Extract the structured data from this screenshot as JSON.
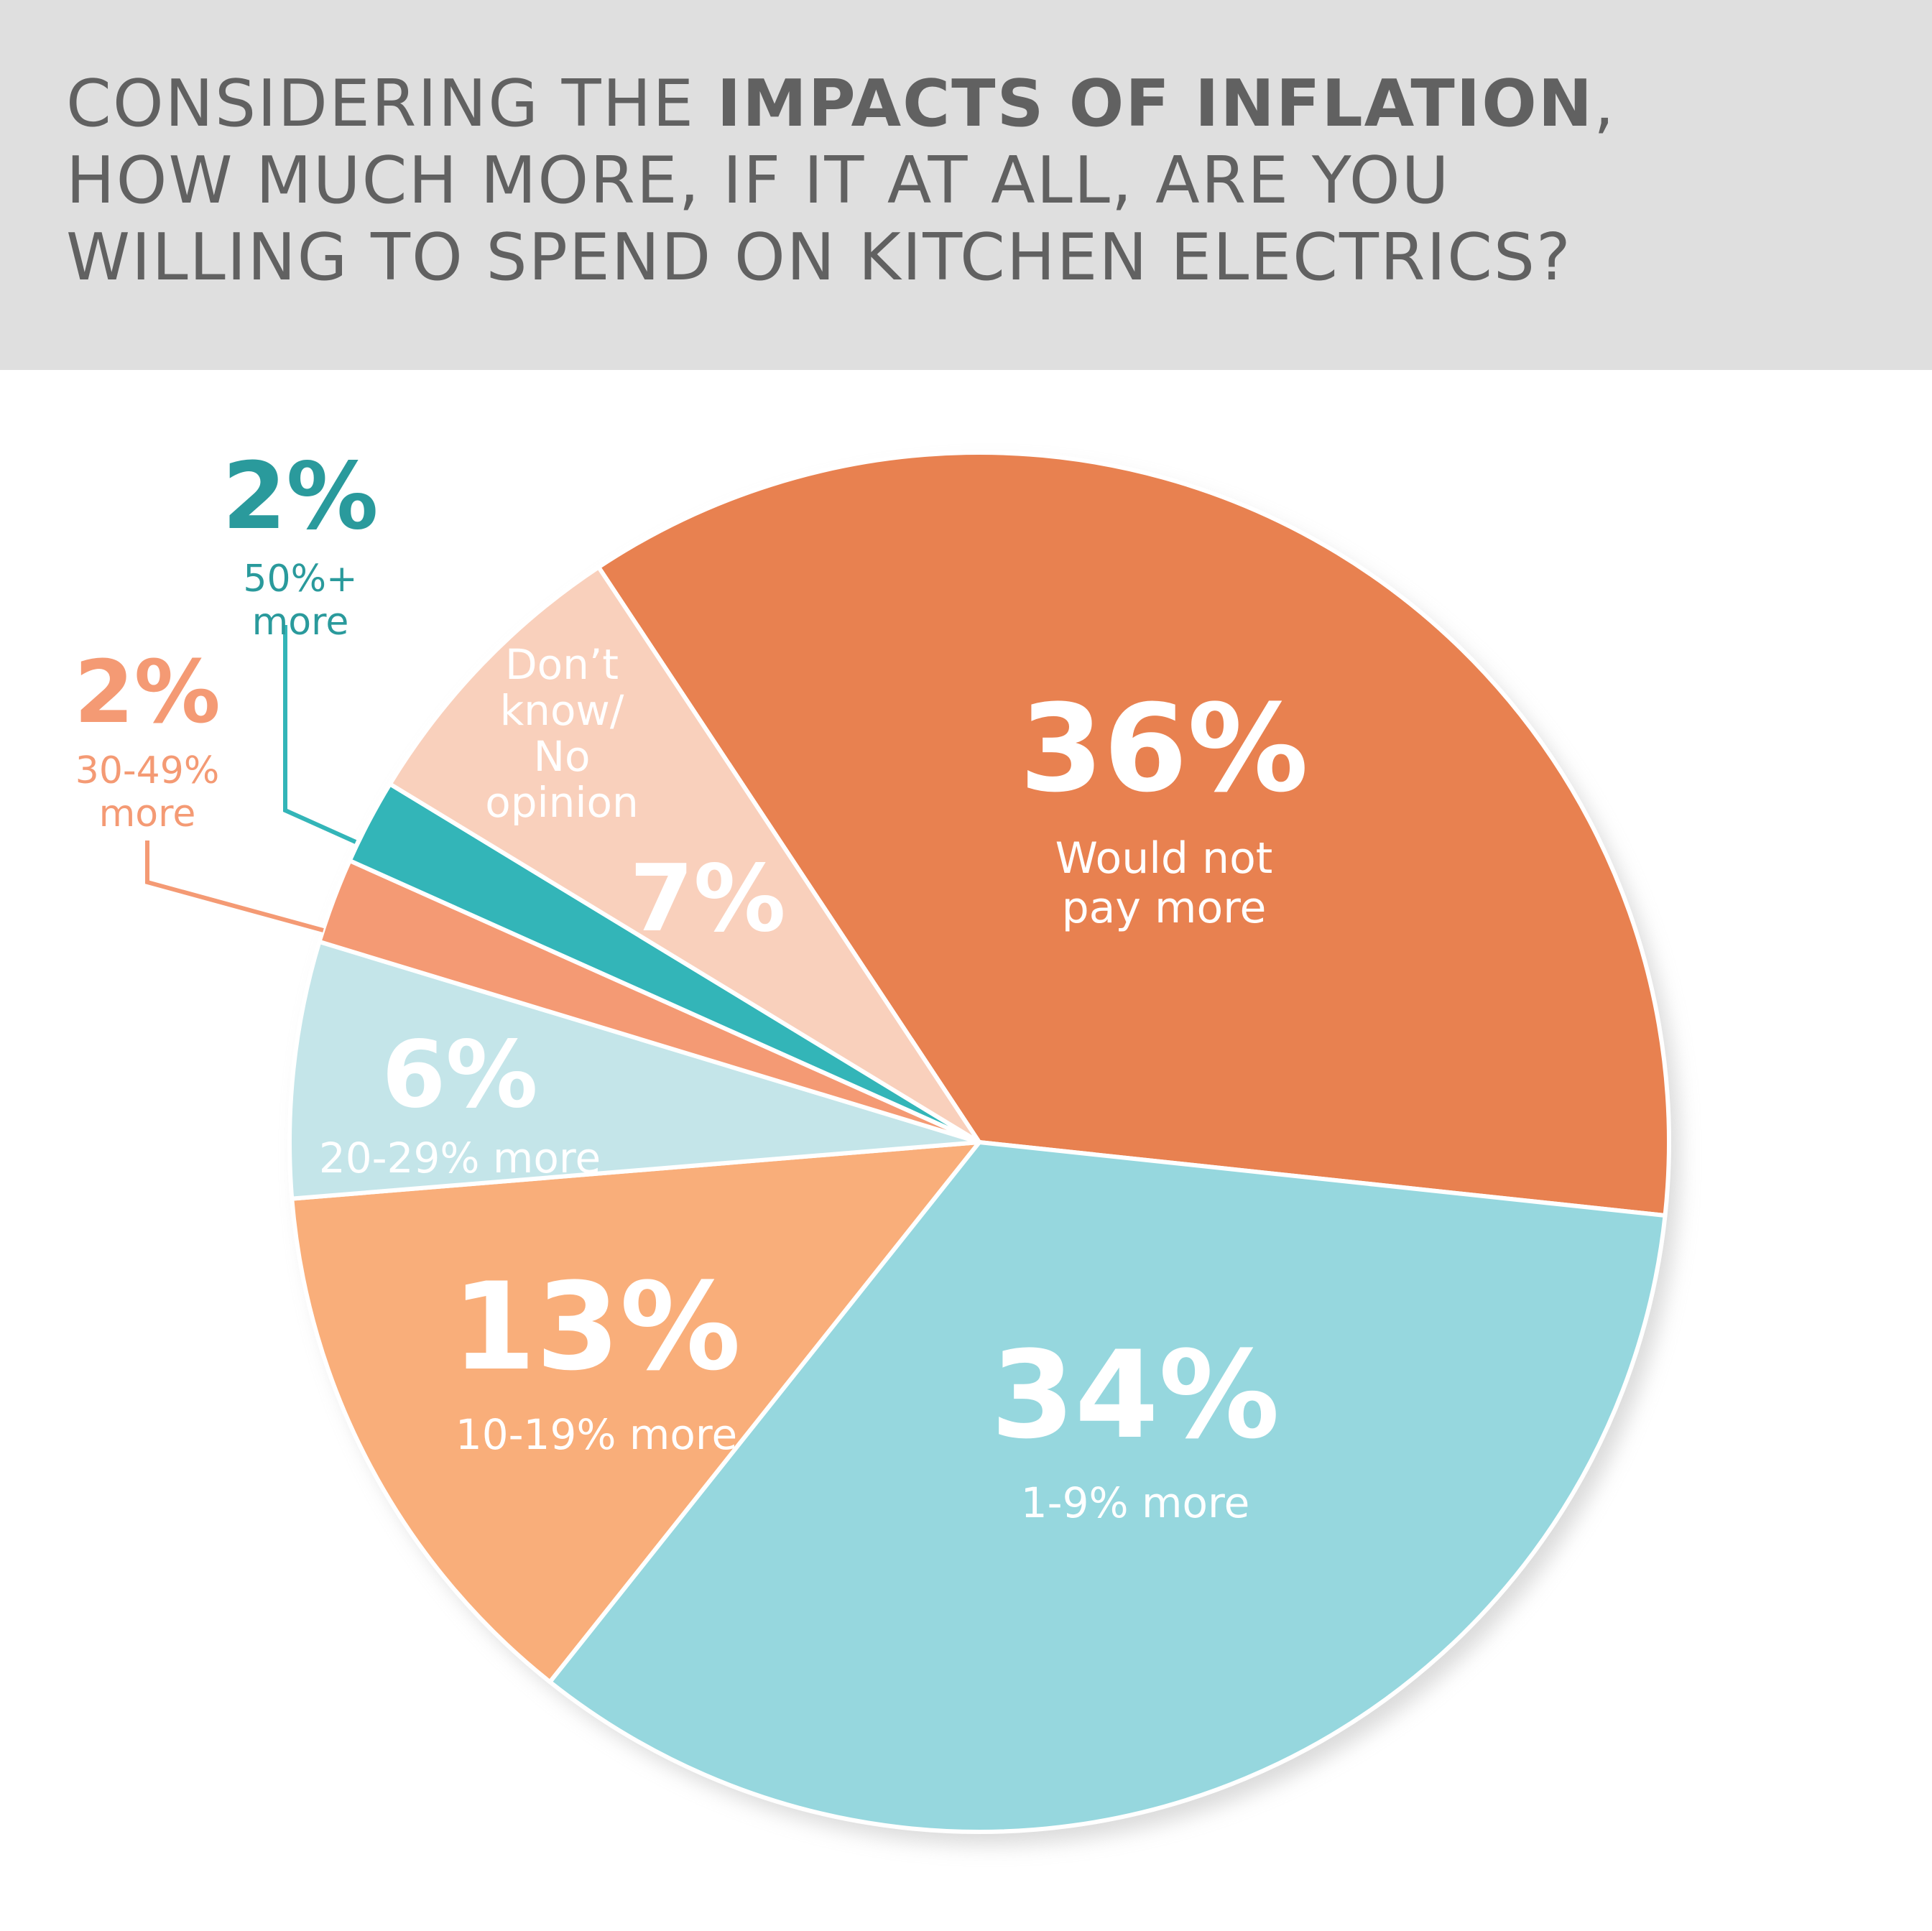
{
  "title": {
    "line1_pre": "CONSIDERING THE ",
    "line1_bold": "IMPACTS OF INFLATION",
    "line1_post": ",",
    "line2": "HOW MUCH MORE, IF IT AT ALL, ARE YOU",
    "line3": "WILLING TO SPEND ON KITCHEN ELECTRICS?"
  },
  "chart_data": {
    "type": "pie",
    "title": "CONSIDERING THE IMPACTS OF INFLATION, HOW MUCH MORE, IF IT AT ALL, ARE YOU WILLING TO SPEND ON KITCHEN ELECTRICS?",
    "slices": [
      {
        "label": "Would not pay more",
        "value": 36,
        "value_label": "36%",
        "label_lines": [
          "Would not",
          "pay more"
        ],
        "color": "#e88150",
        "text_color": "#ffffff"
      },
      {
        "label": "1-9% more",
        "value": 34,
        "value_label": "34%",
        "label_lines": [
          "1-9% more"
        ],
        "color": "#96d7de",
        "text_color": "#ffffff"
      },
      {
        "label": "10-19% more",
        "value": 13,
        "value_label": "13%",
        "label_lines": [
          "10-19% more"
        ],
        "color": "#f9ae7a",
        "text_color": "#ffffff"
      },
      {
        "label": "20-29% more",
        "value": 6,
        "value_label": "6%",
        "label_lines": [
          "20-29% more"
        ],
        "color": "#c4e5e9",
        "text_color": "#ffffff"
      },
      {
        "label": "30-49% more",
        "value": 2,
        "value_label": "2%",
        "label_lines": [
          "30-49%",
          "more"
        ],
        "color": "#f49a74",
        "text_color": "#f49a74",
        "callout": true
      },
      {
        "label": "50%+ more",
        "value": 2,
        "value_label": "2%",
        "label_lines": [
          "50%+",
          "more"
        ],
        "color": "#33b5b8",
        "text_color": "#2a9a9c",
        "callout": true
      },
      {
        "label": "Don’t know/ No opinion",
        "value": 7,
        "value_label": "7%",
        "label_lines": [
          "Don’t",
          "know/",
          "No",
          "opinion"
        ],
        "color": "#f9d0bc",
        "text_color": "#ffffff"
      }
    ],
    "colors": {
      "title_band": "#dfdfdf",
      "title_text": "#616161",
      "separator": "#ffffff"
    }
  }
}
